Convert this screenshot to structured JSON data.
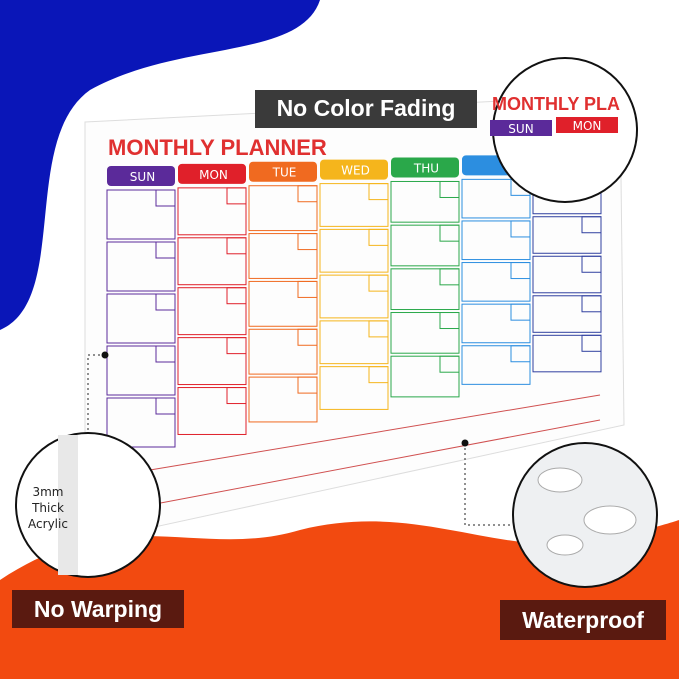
{
  "header": {
    "title": "No Color Fading"
  },
  "planner": {
    "title": "MONTHLY PLANNER",
    "days": [
      "SUN",
      "MON",
      "TUE",
      "WED",
      "THU"
    ]
  },
  "zoom": {
    "title": "MONTHLY PLA",
    "days": [
      "SUN",
      "MON"
    ]
  },
  "callouts": {
    "thickness": [
      "3mm",
      "Thick",
      "Acrylic"
    ],
    "warping": "No Warping",
    "waterproof": "Waterproof"
  }
}
